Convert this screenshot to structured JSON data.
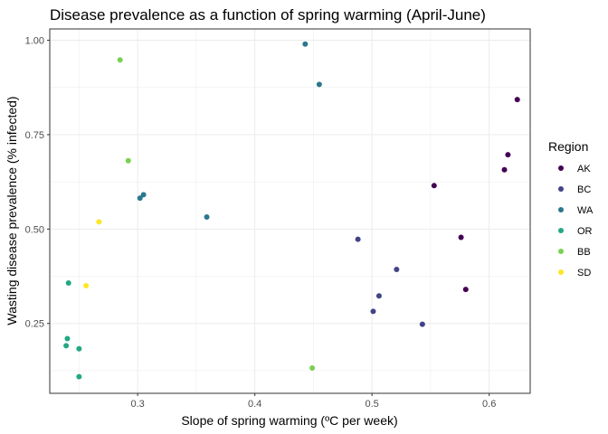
{
  "chart_data": {
    "type": "scatter",
    "title": "Disease prevalence as a function of spring warming (April-June)",
    "xlabel": "Slope of spring warming (ºC per week)",
    "ylabel": "Wasting disease prevalence (% infected)",
    "xlim": [
      0.225,
      0.635
    ],
    "ylim": [
      0.065,
      1.03
    ],
    "x_ticks": [
      0.3,
      0.4,
      0.5,
      0.6
    ],
    "x_tick_labels": [
      "0.3",
      "0.4",
      "0.5",
      "0.6"
    ],
    "y_ticks": [
      0.25,
      0.5,
      0.75,
      1.0
    ],
    "y_tick_labels": [
      "0.25",
      "0.50",
      "0.75",
      "1.00"
    ],
    "grid": true,
    "legend_title": "Region",
    "legend_position": "right",
    "series": [
      {
        "name": "AK",
        "color": "#440154",
        "points": [
          [
            0.624,
            0.843
          ],
          [
            0.616,
            0.697
          ],
          [
            0.613,
            0.657
          ],
          [
            0.553,
            0.615
          ],
          [
            0.576,
            0.478
          ],
          [
            0.58,
            0.34
          ]
        ]
      },
      {
        "name": "BC",
        "color": "#414487",
        "points": [
          [
            0.488,
            0.473
          ],
          [
            0.521,
            0.393
          ],
          [
            0.506,
            0.323
          ],
          [
            0.501,
            0.282
          ],
          [
            0.543,
            0.248
          ]
        ]
      },
      {
        "name": "WA",
        "color": "#2A788E",
        "points": [
          [
            0.443,
            0.99
          ],
          [
            0.455,
            0.883
          ],
          [
            0.305,
            0.591
          ],
          [
            0.302,
            0.582
          ],
          [
            0.359,
            0.532
          ]
        ]
      },
      {
        "name": "OR",
        "color": "#22A884",
        "points": [
          [
            0.241,
            0.357
          ],
          [
            0.24,
            0.21
          ],
          [
            0.239,
            0.191
          ],
          [
            0.25,
            0.183
          ],
          [
            0.25,
            0.109
          ]
        ]
      },
      {
        "name": "BB",
        "color": "#7AD151",
        "points": [
          [
            0.285,
            0.948
          ],
          [
            0.292,
            0.681
          ],
          [
            0.449,
            0.132
          ]
        ]
      },
      {
        "name": "SD",
        "color": "#FDE725",
        "points": [
          [
            0.267,
            0.519
          ],
          [
            0.256,
            0.35
          ]
        ]
      }
    ]
  }
}
